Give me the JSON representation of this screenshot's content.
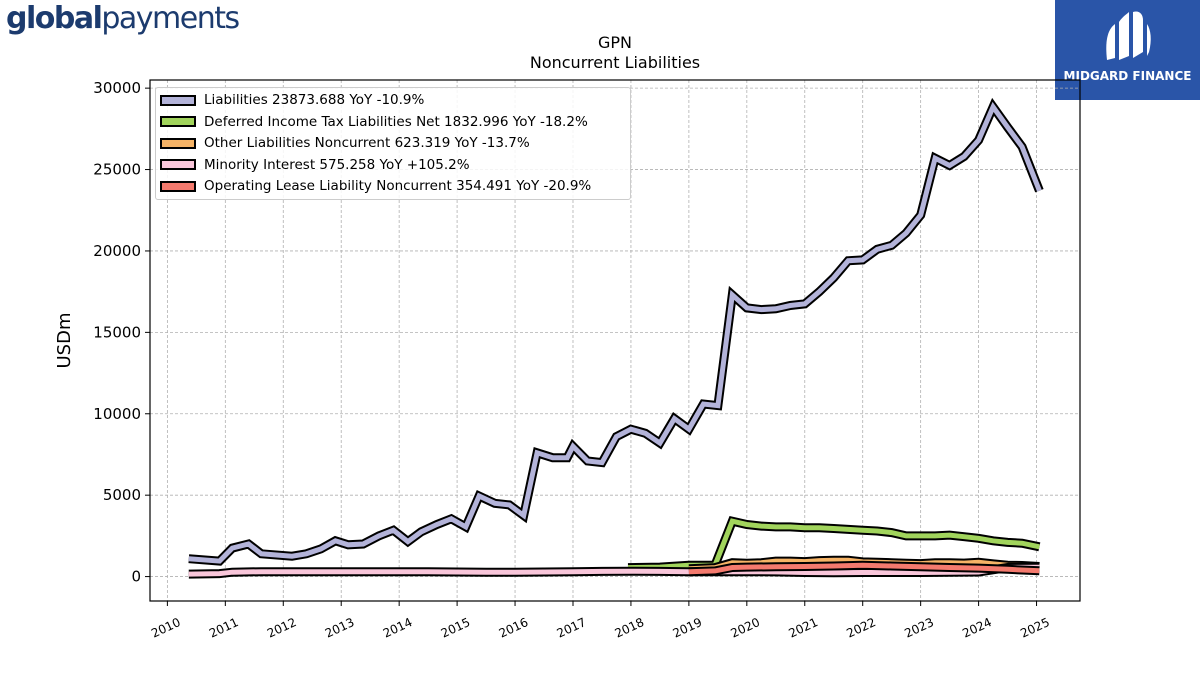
{
  "header": {
    "left_logo_bold": "global",
    "left_logo_light": "payments",
    "right_logo_text": "MIDGARD FINANCE"
  },
  "chart_data": {
    "type": "area",
    "title": "GPN",
    "subtitle": "Noncurrent  Liabilities",
    "ylabel": "USDm",
    "xlabel": "",
    "xlim": [
      2009.7,
      2025.75
    ],
    "ylim": [
      -1500,
      30500
    ],
    "yticks": [
      0,
      5000,
      10000,
      15000,
      20000,
      25000,
      30000
    ],
    "xticks": [
      "2010",
      "2011",
      "2012",
      "2013",
      "2014",
      "2015",
      "2016",
      "2017",
      "2018",
      "2019",
      "2020",
      "2021",
      "2022",
      "2023",
      "2024",
      "2025"
    ],
    "grid": true,
    "legend_position": "top-left",
    "series": [
      {
        "name": "Liabilities  23873.688 YoY -10.9%",
        "color": "#b3b3d9",
        "points": [
          [
            2010.37,
            1100
          ],
          [
            2010.9,
            950
          ],
          [
            2011.12,
            1750
          ],
          [
            2011.4,
            2000
          ],
          [
            2011.62,
            1400
          ],
          [
            2012.15,
            1250
          ],
          [
            2012.4,
            1400
          ],
          [
            2012.65,
            1700
          ],
          [
            2012.9,
            2200
          ],
          [
            2013.12,
            1950
          ],
          [
            2013.38,
            2000
          ],
          [
            2013.65,
            2500
          ],
          [
            2013.9,
            2850
          ],
          [
            2014.15,
            2150
          ],
          [
            2014.38,
            2750
          ],
          [
            2014.65,
            3200
          ],
          [
            2014.9,
            3550
          ],
          [
            2015.15,
            3050
          ],
          [
            2015.38,
            4950
          ],
          [
            2015.65,
            4500
          ],
          [
            2015.9,
            4400
          ],
          [
            2016.15,
            3750
          ],
          [
            2016.38,
            7600
          ],
          [
            2016.65,
            7300
          ],
          [
            2016.9,
            7300
          ],
          [
            2017.0,
            8000
          ],
          [
            2017.25,
            7100
          ],
          [
            2017.5,
            7000
          ],
          [
            2017.75,
            8600
          ],
          [
            2018.0,
            9050
          ],
          [
            2018.25,
            8800
          ],
          [
            2018.5,
            8200
          ],
          [
            2018.75,
            9700
          ],
          [
            2019.0,
            9050
          ],
          [
            2019.25,
            10600
          ],
          [
            2019.5,
            10500
          ],
          [
            2019.75,
            17300
          ],
          [
            2020.0,
            16500
          ],
          [
            2020.25,
            16400
          ],
          [
            2020.5,
            16450
          ],
          [
            2020.75,
            16650
          ],
          [
            2021.0,
            16750
          ],
          [
            2021.25,
            17500
          ],
          [
            2021.5,
            18350
          ],
          [
            2021.75,
            19400
          ],
          [
            2022.0,
            19450
          ],
          [
            2022.25,
            20100
          ],
          [
            2022.5,
            20350
          ],
          [
            2022.75,
            21100
          ],
          [
            2023.0,
            22200
          ],
          [
            2023.25,
            25700
          ],
          [
            2023.5,
            25250
          ],
          [
            2023.75,
            25800
          ],
          [
            2024.0,
            26800
          ],
          [
            2024.25,
            28850
          ],
          [
            2024.5,
            27600
          ],
          [
            2024.75,
            26400
          ],
          [
            2025.05,
            23700
          ]
        ]
      },
      {
        "name": "Deferred Income Tax Liabilities Net  1832.996 YoY -18.2%",
        "color": "#a1d45c",
        "points": [
          [
            2017.95,
            550
          ],
          [
            2018.5,
            580
          ],
          [
            2019.0,
            700
          ],
          [
            2019.45,
            700
          ],
          [
            2019.75,
            3400
          ],
          [
            2020.0,
            3200
          ],
          [
            2020.25,
            3100
          ],
          [
            2020.5,
            3050
          ],
          [
            2020.75,
            3050
          ],
          [
            2021.0,
            3000
          ],
          [
            2021.25,
            3000
          ],
          [
            2021.5,
            2950
          ],
          [
            2021.75,
            2900
          ],
          [
            2022.0,
            2850
          ],
          [
            2022.25,
            2800
          ],
          [
            2022.5,
            2700
          ],
          [
            2022.75,
            2500
          ],
          [
            2023.0,
            2500
          ],
          [
            2023.25,
            2500
          ],
          [
            2023.5,
            2550
          ],
          [
            2023.75,
            2450
          ],
          [
            2024.0,
            2350
          ],
          [
            2024.25,
            2200
          ],
          [
            2024.5,
            2100
          ],
          [
            2024.75,
            2050
          ],
          [
            2025.05,
            1830
          ]
        ]
      },
      {
        "name": "Other Liabilities Noncurrent  623.319 YoY -13.7%",
        "color": "#f5b366",
        "points": [
          [
            2019.0,
            480
          ],
          [
            2019.45,
            550
          ],
          [
            2019.75,
            850
          ],
          [
            2020.0,
            820
          ],
          [
            2020.25,
            850
          ],
          [
            2020.5,
            950
          ],
          [
            2020.75,
            950
          ],
          [
            2021.0,
            920
          ],
          [
            2021.25,
            980
          ],
          [
            2021.5,
            1000
          ],
          [
            2021.75,
            1000
          ],
          [
            2022.0,
            900
          ],
          [
            2022.25,
            880
          ],
          [
            2022.5,
            850
          ],
          [
            2022.75,
            820
          ],
          [
            2023.0,
            800
          ],
          [
            2023.25,
            850
          ],
          [
            2023.5,
            850
          ],
          [
            2023.75,
            830
          ],
          [
            2024.0,
            880
          ],
          [
            2024.25,
            780
          ],
          [
            2024.5,
            700
          ],
          [
            2024.75,
            680
          ],
          [
            2025.05,
            620
          ]
        ]
      },
      {
        "name": "Minority Interest  575.258 YoY +105.2%",
        "color": "#f9c6da",
        "points": [
          [
            2010.37,
            150
          ],
          [
            2010.9,
            180
          ],
          [
            2011.12,
            270
          ],
          [
            2011.62,
            300
          ],
          [
            2012.5,
            300
          ],
          [
            2013.5,
            300
          ],
          [
            2014.5,
            300
          ],
          [
            2015.0,
            280
          ],
          [
            2015.5,
            260
          ],
          [
            2016.0,
            270
          ],
          [
            2016.5,
            280
          ],
          [
            2017.0,
            300
          ],
          [
            2017.5,
            320
          ],
          [
            2018.0,
            330
          ],
          [
            2018.5,
            320
          ],
          [
            2019.0,
            300
          ],
          [
            2019.5,
            300
          ],
          [
            2020.0,
            300
          ],
          [
            2020.5,
            290
          ],
          [
            2021.0,
            250
          ],
          [
            2021.5,
            240
          ],
          [
            2022.0,
            250
          ],
          [
            2022.5,
            250
          ],
          [
            2023.0,
            250
          ],
          [
            2023.5,
            260
          ],
          [
            2024.0,
            280
          ],
          [
            2024.5,
            560
          ],
          [
            2025.05,
            575
          ]
        ]
      },
      {
        "name": "Operating Lease Liability Noncurrent  354.491 YoY -20.9%",
        "color": "#f47a6e",
        "points": [
          [
            2019.0,
            300
          ],
          [
            2019.45,
            350
          ],
          [
            2019.75,
            560
          ],
          [
            2020.0,
            580
          ],
          [
            2020.5,
            600
          ],
          [
            2021.0,
            620
          ],
          [
            2021.5,
            650
          ],
          [
            2022.0,
            700
          ],
          [
            2022.5,
            650
          ],
          [
            2023.0,
            600
          ],
          [
            2023.5,
            560
          ],
          [
            2024.0,
            520
          ],
          [
            2024.5,
            450
          ],
          [
            2025.05,
            354
          ]
        ]
      }
    ]
  }
}
